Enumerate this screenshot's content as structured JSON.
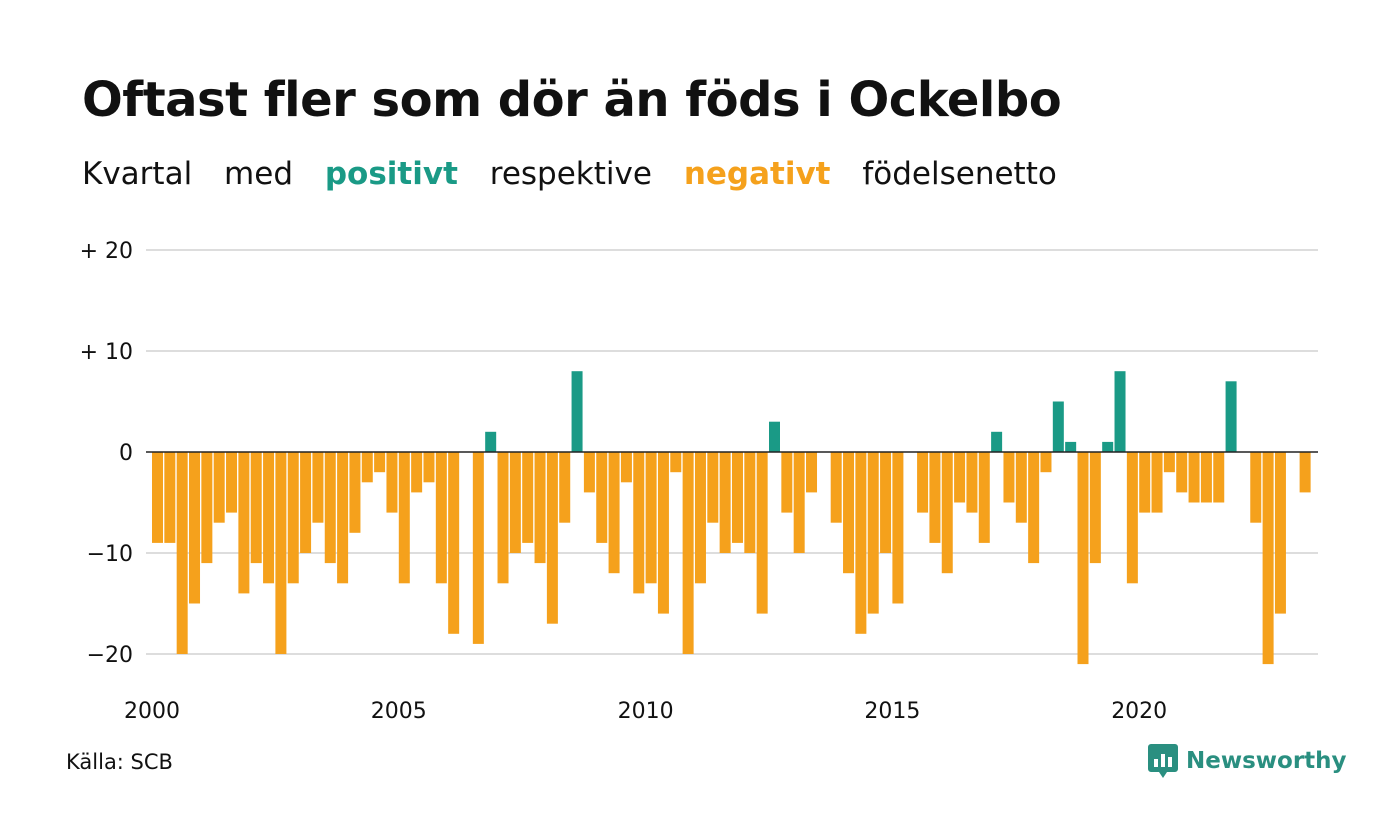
{
  "title": "Oftast fler som dör än föds i Ockelbo",
  "subtitle": {
    "part1": "Kvartal",
    "part2": "med",
    "positive": "positivt",
    "part3": "respektive",
    "negative": "negativt",
    "part4": "födelsenetto"
  },
  "colors": {
    "positive": "#1a9a86",
    "negative": "#f5a11c",
    "grid": "#dddddd",
    "zero_line": "#222222",
    "logo": "#2a8f80"
  },
  "source": "Källa: SCB",
  "brand": "Newsworthy",
  "chart_data": {
    "type": "bar",
    "title": "Oftast fler som dör än föds i Ockelbo",
    "subtitle": "Kvartal med positivt respektive negativt födelsenetto",
    "xlabel": "",
    "ylabel": "",
    "ylim": [
      -23,
      20
    ],
    "yticks": [
      20,
      10,
      0,
      -10,
      -20
    ],
    "ytick_labels": [
      "+ 20",
      "+ 10",
      "0",
      "−10",
      "−20"
    ],
    "xtick_labels": [
      "2000",
      "2005",
      "2010",
      "2015",
      "2020"
    ],
    "grid": true,
    "first_period": "2000 Q1",
    "values": [
      -9,
      -9,
      -20,
      -15,
      -11,
      -7,
      -6,
      -14,
      -11,
      -13,
      -20,
      -13,
      -10,
      -7,
      -11,
      -13,
      -8,
      -3,
      -2,
      -6,
      -13,
      -4,
      -3,
      -13,
      -18,
      0,
      -19,
      2,
      -13,
      -10,
      -9,
      -11,
      -17,
      -7,
      8,
      -4,
      -9,
      -12,
      -3,
      -14,
      -13,
      -16,
      -2,
      -20,
      -13,
      -7,
      -10,
      -9,
      -10,
      -16,
      3,
      -6,
      -10,
      -4,
      0,
      -7,
      -12,
      -18,
      -16,
      -10,
      -15,
      0,
      -6,
      -9,
      -12,
      -5,
      -6,
      -9,
      2,
      -5,
      -7,
      -11,
      -2,
      5,
      1,
      -21,
      -11,
      1,
      8,
      -13,
      -6,
      -6,
      -2,
      -4,
      -5,
      -5,
      -5,
      7,
      0,
      -7,
      -21,
      -16,
      0,
      -4
    ]
  }
}
